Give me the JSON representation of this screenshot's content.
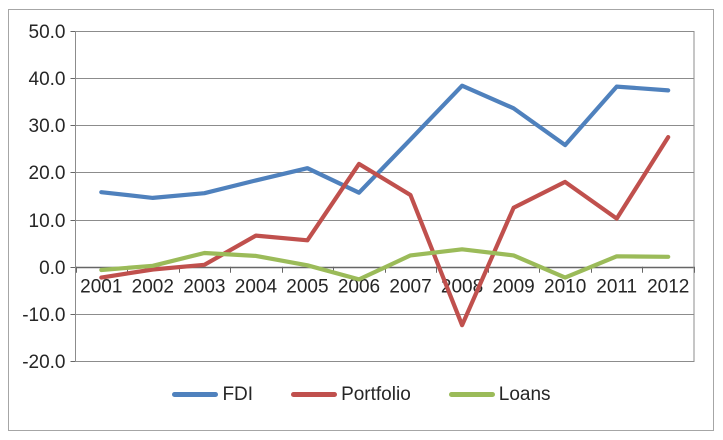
{
  "chart_data": {
    "type": "line",
    "title": "",
    "xlabel": "",
    "ylabel": "",
    "x": [
      2001,
      2002,
      2003,
      2004,
      2005,
      2006,
      2007,
      2008,
      2009,
      2010,
      2011,
      2012
    ],
    "series": [
      {
        "name": "FDI",
        "color": "#4F81BD",
        "values": [
          15.8,
          14.6,
          15.6,
          18.3,
          20.9,
          15.7,
          27.0,
          38.4,
          33.6,
          25.8,
          38.2,
          37.4
        ]
      },
      {
        "name": "Portfolio",
        "color": "#C0504D",
        "values": [
          -2.3,
          -0.6,
          0.4,
          6.6,
          5.6,
          21.8,
          15.2,
          -12.4,
          12.5,
          18.0,
          10.2,
          27.5
        ]
      },
      {
        "name": "Loans",
        "color": "#9BBB59",
        "values": [
          -0.7,
          0.2,
          2.9,
          2.3,
          0.3,
          -2.7,
          2.4,
          3.7,
          2.4,
          -2.3,
          2.2,
          2.1
        ]
      }
    ],
    "ylim": [
      -20,
      50
    ],
    "ytick_step": 10,
    "ytick_labels": [
      "50.0",
      "40.0",
      "30.0",
      "20.0",
      "10.0",
      "0.0",
      "-10.0",
      "-20.0"
    ],
    "xtick_labels": [
      "2001",
      "2002",
      "2003",
      "2004",
      "2005",
      "2006",
      "2007",
      "2008",
      "2009",
      "2010",
      "2011",
      "2012"
    ],
    "grid": true,
    "legend_position": "bottom"
  },
  "colors": {
    "background": "#ffffff",
    "chart_border": "#a6a6a6",
    "gridline": "#8c8c8c",
    "plot_border": "#8c8c8c",
    "zero_axis": "#666666",
    "tick": "#666666",
    "text": "#262626"
  }
}
